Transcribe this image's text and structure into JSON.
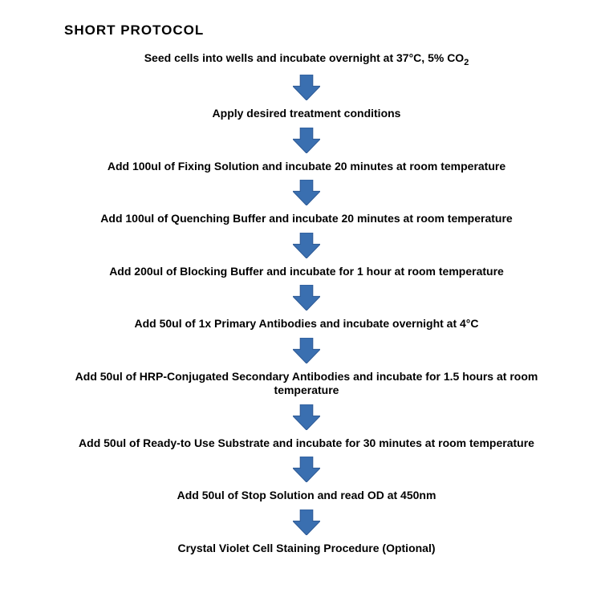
{
  "title": "SHORT PROTOCOL",
  "title_fontsize": 17,
  "title_color": "#000000",
  "step_fontsize": 14,
  "step_color": "#000000",
  "background_color": "#ffffff",
  "arrow": {
    "fill": "#3a6fb0",
    "stroke": "#2e5a95",
    "width": 34,
    "height": 32
  },
  "steps": [
    "Seed cells into wells and incubate overnight at 37°C, 5% CO₂",
    "Apply desired treatment conditions",
    "Add 100ul of Fixing Solution and incubate 20 minutes at room temperature",
    "Add 100ul of Quenching Buffer and incubate 20 minutes at room temperature",
    "Add 200ul of Blocking Buffer and incubate for 1 hour at room temperature",
    "Add 50ul of 1x Primary Antibodies and incubate overnight at 4°C",
    "Add 50ul of HRP-Conjugated Secondary Antibodies and incubate for 1.5 hours at room temperature",
    "Add 50ul of Ready-to Use Substrate and incubate for 30 minutes at room temperature",
    "Add 50ul of Stop Solution and read OD at 450nm",
    "Crystal Violet Cell Staining Procedure (Optional)"
  ]
}
